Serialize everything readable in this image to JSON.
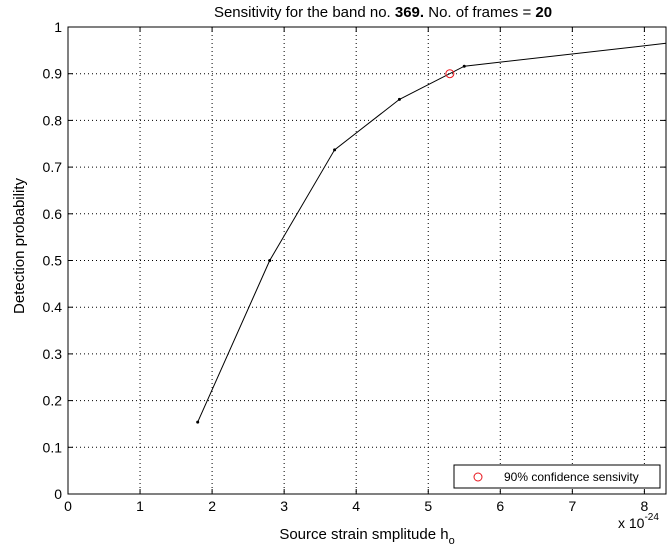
{
  "chart_data": {
    "type": "line",
    "title": {
      "prefix": "Sensitivity for the band no. ",
      "band": "369.",
      "middle": " No. of frames = ",
      "frames": "20"
    },
    "xlabel": "Source strain smplitude h",
    "xlabel_subscript": "o",
    "ylabel": "Detection probability",
    "x_exponent_label": "x 10",
    "x_exponent": "-24",
    "xlim": [
      0,
      8.3
    ],
    "ylim": [
      0,
      1
    ],
    "xticks": [
      0,
      1,
      2,
      3,
      4,
      5,
      6,
      7,
      8
    ],
    "yticks": [
      0,
      0.1,
      0.2,
      0.3,
      0.4,
      0.5,
      0.6,
      0.7,
      0.8,
      0.9,
      1
    ],
    "ytick_labels": [
      "0",
      "0.1",
      "0.2",
      "0.3",
      "0.4",
      "0.5",
      "0.6",
      "0.7",
      "0.8",
      "0.9",
      "1"
    ],
    "grid": true,
    "series": [
      {
        "x": [
          1.8,
          2.8,
          3.7,
          4.6,
          5.5,
          8.3
        ],
        "y": [
          0.154,
          0.5,
          0.737,
          0.845,
          0.916,
          0.965
        ],
        "color": "#000000"
      }
    ],
    "marker": {
      "label": "90% confidence sensivity",
      "x": 5.3,
      "y": 0.9,
      "color": "#e8141c"
    },
    "legend_position": "bottom-right"
  }
}
